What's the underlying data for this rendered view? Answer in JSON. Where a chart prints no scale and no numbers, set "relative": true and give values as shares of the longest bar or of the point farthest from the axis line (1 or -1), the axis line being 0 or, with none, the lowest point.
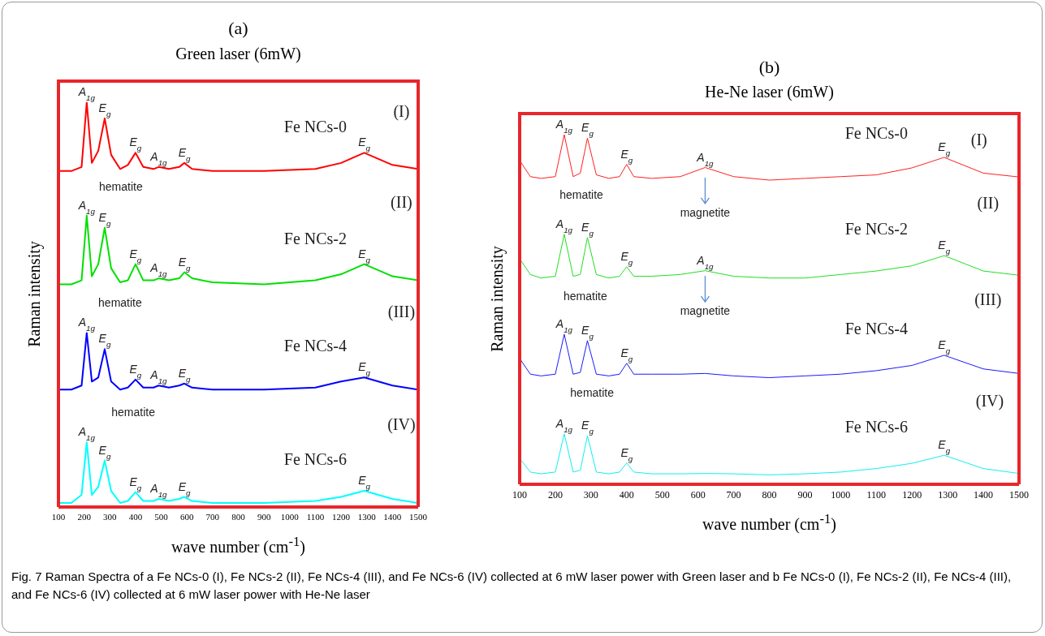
{
  "chart_data": [
    {
      "type": "line",
      "title": "(a)",
      "subtitle": "Green laser (6mW)",
      "xlabel": "wave number (cm$^{-1}$)",
      "ylabel": "Raman intensity",
      "relative": true,
      "xlim": [
        100,
        1500
      ],
      "xticks": [
        100,
        200,
        300,
        400,
        500,
        600,
        700,
        800,
        900,
        1000,
        1100,
        1200,
        1300,
        1400,
        1500
      ],
      "x": [
        100,
        150,
        190,
        210,
        230,
        255,
        280,
        305,
        340,
        370,
        400,
        430,
        470,
        490,
        530,
        570,
        590,
        620,
        700,
        900,
        1100,
        1200,
        1290,
        1400,
        1500
      ],
      "series": [
        {
          "name": "Fe NCs-0",
          "color": "#ff0000",
          "values": [
            0.83,
            0.83,
            0.84,
            1.0,
            0.85,
            0.88,
            0.96,
            0.87,
            0.835,
            0.845,
            0.875,
            0.84,
            0.835,
            0.84,
            0.835,
            0.84,
            0.85,
            0.835,
            0.83,
            0.83,
            0.835,
            0.85,
            0.875,
            0.845,
            0.835
          ]
        },
        {
          "name": "Fe NCs-2",
          "color": "#00e000",
          "values": [
            0.55,
            0.55,
            0.56,
            0.72,
            0.57,
            0.6,
            0.69,
            0.59,
            0.555,
            0.56,
            0.6,
            0.56,
            0.56,
            0.565,
            0.56,
            0.565,
            0.58,
            0.565,
            0.555,
            0.55,
            0.56,
            0.575,
            0.6,
            0.57,
            0.56
          ]
        },
        {
          "name": "Fe NCs-4",
          "color": "#0000ff",
          "values": [
            0.29,
            0.29,
            0.3,
            0.43,
            0.31,
            0.32,
            0.39,
            0.31,
            0.29,
            0.295,
            0.315,
            0.295,
            0.295,
            0.3,
            0.295,
            0.3,
            0.305,
            0.295,
            0.29,
            0.29,
            0.295,
            0.31,
            0.32,
            0.3,
            0.29
          ]
        },
        {
          "name": "Fe NCs-6",
          "color": "#00ffff",
          "values": [
            0.01,
            0.01,
            0.03,
            0.16,
            0.03,
            0.05,
            0.115,
            0.04,
            0.01,
            0.015,
            0.037,
            0.015,
            0.015,
            0.02,
            0.015,
            0.02,
            0.025,
            0.015,
            0.01,
            0.01,
            0.015,
            0.025,
            0.04,
            0.02,
            0.01
          ]
        }
      ],
      "annotations": [
        {
          "text": "A$_{1g}$",
          "x": 210,
          "y": 1.0
        },
        {
          "text": "E$_{g}$",
          "x": 280,
          "y": 0.96
        },
        {
          "text": "E$_{g}$",
          "x": 400,
          "y": 0.875
        },
        {
          "text": "A$_{1g}$",
          "x": 490,
          "y": 0.84
        },
        {
          "text": "E$_{g}$",
          "x": 590,
          "y": 0.85
        },
        {
          "text": "E$_{g}$",
          "x": 1290,
          "y": 0.875
        },
        "(I)",
        "hematite",
        {
          "text": "A$_{1g}$",
          "x": 210,
          "y": 0.72
        },
        {
          "text": "E$_{g}$",
          "x": 280,
          "y": 0.69
        },
        {
          "text": "E$_{g}$",
          "x": 400,
          "y": 0.6
        },
        {
          "text": "A$_{1g}$",
          "x": 490,
          "y": 0.565
        },
        {
          "text": "E$_{g}$",
          "x": 590,
          "y": 0.58
        },
        {
          "text": "E$_{g}$",
          "x": 1290,
          "y": 0.6
        },
        "(II)",
        "hematite",
        {
          "text": "A$_{1g}$",
          "x": 210,
          "y": 0.43
        },
        {
          "text": "E$_{g}$",
          "x": 280,
          "y": 0.39
        },
        {
          "text": "E$_{g}$",
          "x": 400,
          "y": 0.315
        },
        {
          "text": "A$_{1g}$",
          "x": 490,
          "y": 0.3
        },
        {
          "text": "E$_{g}$",
          "x": 590,
          "y": 0.305
        },
        {
          "text": "E$_{g}$",
          "x": 1290,
          "y": 0.32
        },
        "(III)",
        "hematite",
        {
          "text": "A$_{1g}$",
          "x": 210,
          "y": 0.16
        },
        {
          "text": "E$_{g}$",
          "x": 280,
          "y": 0.115
        },
        {
          "text": "E$_{g}$",
          "x": 400,
          "y": 0.037
        },
        {
          "text": "A$_{1g}$",
          "x": 490,
          "y": 0.02
        },
        {
          "text": "E$_{g}$",
          "x": 590,
          "y": 0.025
        },
        {
          "text": "E$_{g}$",
          "x": 1290,
          "y": 0.04
        },
        "(IV)"
      ]
    },
    {
      "type": "line",
      "title": "(b)",
      "subtitle": "He-Ne laser (6mW)",
      "xlabel": "wave number (cm$^{-1}$)",
      "ylabel": "Raman intensity",
      "relative": true,
      "xlim": [
        100,
        1500
      ],
      "xticks": [
        100,
        200,
        300,
        400,
        500,
        600,
        700,
        800,
        900,
        1000,
        1100,
        1200,
        1300,
        1400,
        1500
      ],
      "x": [
        100,
        130,
        160,
        200,
        225,
        250,
        270,
        290,
        315,
        350,
        380,
        400,
        420,
        470,
        550,
        620,
        700,
        800,
        900,
        1000,
        1100,
        1200,
        1290,
        1400,
        1500
      ],
      "series": [
        {
          "name": "Fe NCs-0",
          "color": "#ff2020",
          "values": [
            0.926,
            0.88,
            0.875,
            0.88,
            1.0,
            0.88,
            0.89,
            0.99,
            0.885,
            0.875,
            0.88,
            0.915,
            0.88,
            0.875,
            0.88,
            0.906,
            0.88,
            0.87,
            0.875,
            0.88,
            0.885,
            0.905,
            0.935,
            0.89,
            0.879
          ]
        },
        {
          "name": "Fe NCs-2",
          "color": "#20e020",
          "values": [
            0.645,
            0.6,
            0.59,
            0.595,
            0.715,
            0.595,
            0.6,
            0.706,
            0.6,
            0.59,
            0.595,
            0.622,
            0.595,
            0.595,
            0.6,
            0.611,
            0.595,
            0.59,
            0.59,
            0.6,
            0.61,
            0.625,
            0.654,
            0.61,
            0.598
          ]
        },
        {
          "name": "Fe NCs-4",
          "color": "#1a1aff",
          "values": [
            0.36,
            0.315,
            0.31,
            0.315,
            0.429,
            0.315,
            0.32,
            0.411,
            0.315,
            0.31,
            0.315,
            0.346,
            0.315,
            0.315,
            0.315,
            0.317,
            0.31,
            0.305,
            0.31,
            0.315,
            0.325,
            0.34,
            0.369,
            0.33,
            0.317
          ]
        },
        {
          "name": "Fe NCs-6",
          "color": "#10f0f0",
          "values": [
            0.074,
            0.035,
            0.03,
            0.035,
            0.144,
            0.035,
            0.04,
            0.139,
            0.035,
            0.03,
            0.035,
            0.061,
            0.035,
            0.03,
            0.03,
            0.031,
            0.03,
            0.027,
            0.03,
            0.035,
            0.045,
            0.06,
            0.083,
            0.045,
            0.031
          ]
        }
      ],
      "annotations": [
        {
          "text": "A$_{1g}$",
          "x": 225,
          "y": 1.0
        },
        {
          "text": "E$_{g}$",
          "x": 290,
          "y": 0.99
        },
        {
          "text": "E$_{g}$",
          "x": 400,
          "y": 0.915
        },
        {
          "text": "A$_{1g}$",
          "x": 620,
          "y": 0.906
        },
        {
          "text": "E$_{g}$",
          "x": 1290,
          "y": 0.935
        },
        "(I)",
        "hematite",
        "magnetite",
        {
          "text": "A$_{1g}$",
          "x": 225,
          "y": 0.715
        },
        {
          "text": "E$_{g}$",
          "x": 290,
          "y": 0.706
        },
        {
          "text": "E$_{g}$",
          "x": 400,
          "y": 0.622
        },
        {
          "text": "A$_{1g}$",
          "x": 620,
          "y": 0.611
        },
        {
          "text": "E$_{g}$",
          "x": 1290,
          "y": 0.654
        },
        "(II)",
        "hematite",
        "magnetite",
        {
          "text": "A$_{1g}$",
          "x": 225,
          "y": 0.429
        },
        {
          "text": "E$_{g}$",
          "x": 290,
          "y": 0.411
        },
        {
          "text": "E$_{g}$",
          "x": 400,
          "y": 0.346
        },
        {
          "text": "E$_{g}$",
          "x": 1290,
          "y": 0.369
        },
        "(III)",
        "hematite",
        {
          "text": "A$_{1g}$",
          "x": 225,
          "y": 0.144
        },
        {
          "text": "E$_{g}$",
          "x": 290,
          "y": 0.139
        },
        {
          "text": "E$_{g}$",
          "x": 400,
          "y": 0.061
        },
        {
          "text": "E$_{g}$",
          "x": 1290,
          "y": 0.083
        },
        "(IV)",
        "Fig. 7 Raman Spectra of a Fe NCs-0 (I), Fe NCs-2 (II), Fe NCs-4 (III), and Fe NCs-6 (IV) collected at 6 mW laser power with Green laser and b Fe NCs-0 (I), Fe NCs-2 (II), Fe NCs-4 (III), and Fe NCs-6 (IV) collected at 6 mW laser power with He-Ne laser"
      ]
    }
  ]
}
